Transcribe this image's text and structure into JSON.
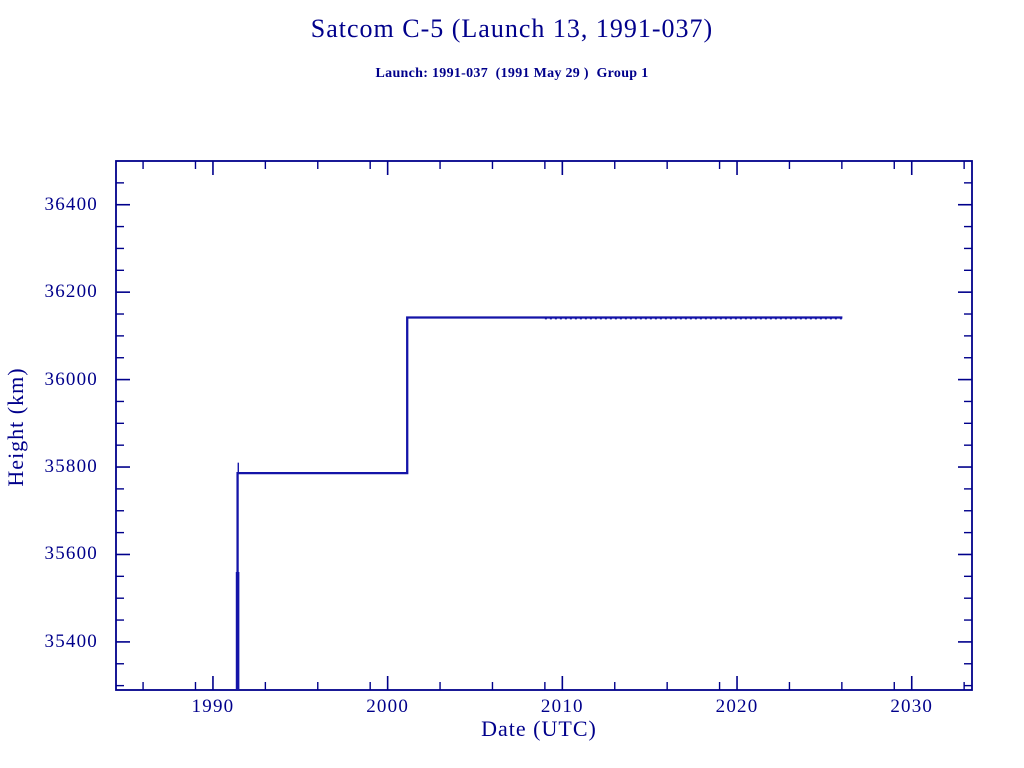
{
  "chart_data": {
    "type": "line",
    "title": "Satcom C-5 (Launch 13, 1991-037)",
    "subtitle": "Launch: 1991-037  (1991 May 29 )  Group 1",
    "xlabel": "Date (UTC)",
    "ylabel": "Height (km)",
    "xlim": [
      1984.45,
      2033.45
    ],
    "ylim": [
      35290,
      36500
    ],
    "grid": false,
    "legend": "none",
    "x_major_ticks": [
      1990,
      2000,
      2010,
      2020,
      2030
    ],
    "x_minor_ticks": [
      1986,
      1989,
      1993,
      1996,
      1999,
      2003,
      2006,
      2009,
      2013,
      2016,
      2019,
      2023,
      2026,
      2029,
      2033
    ],
    "y_major_ticks": [
      35400,
      35600,
      35800,
      36000,
      36200,
      36400
    ],
    "y_minor_step": 50,
    "axis_color": "#00008B",
    "series": [
      {
        "name": "height-km",
        "color": "#1414A8",
        "points": [
          [
            1991.41,
            35290
          ],
          [
            1991.41,
            35786
          ],
          [
            2001.12,
            35786
          ],
          [
            2001.12,
            36142
          ],
          [
            2026.03,
            36142
          ]
        ]
      }
    ],
    "annotations": {
      "launch_spike": {
        "x": 1991.41,
        "y_from": 35290,
        "y_to": 35560
      },
      "start_blip": {
        "x": 1991.45,
        "y_from": 35786,
        "y_to": 35810
      },
      "upper_fuzz": {
        "x_from": 2009.0,
        "x_to": 2026.03,
        "y": 36139
      },
      "lower_level_value": 35786,
      "upper_level_value": 36142
    }
  }
}
